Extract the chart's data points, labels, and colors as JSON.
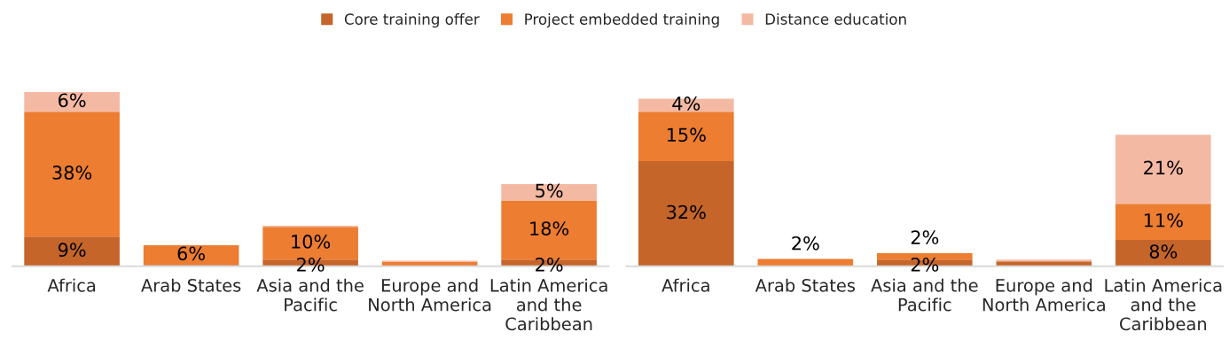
{
  "chart_data": [
    {
      "type": "bar",
      "stacked": true,
      "legend": "top",
      "grid": false,
      "categories": [
        "Africa",
        "Arab States",
        "Asia and the Pacific",
        "Europe and North America",
        "Latin America and the Caribbean"
      ],
      "series": [
        {
          "name": "Core training offer",
          "color": "#c5652a",
          "values": [
            9,
            0.4,
            2,
            0.1,
            2
          ],
          "value_labels": [
            "9%",
            null,
            "2%",
            null,
            "2%"
          ]
        },
        {
          "name": "Project embedded training",
          "color": "#ed7d31",
          "values": [
            38,
            6,
            10,
            1.2,
            18
          ],
          "value_labels": [
            "38%",
            "6%",
            "10%",
            null,
            "18%"
          ]
        },
        {
          "name": "Distance education",
          "color": "#f4b9a2",
          "values": [
            6,
            null,
            0.3,
            0.4,
            5
          ],
          "value_labels": [
            "6%",
            null,
            null,
            null,
            "5%"
          ]
        }
      ]
    },
    {
      "type": "bar",
      "stacked": true,
      "grid": false,
      "categories": [
        "Africa",
        "Arab States",
        "Asia and the Pacific",
        "Europe and North America",
        "Latin America and the Caribbean"
      ],
      "series": [
        {
          "color": "#c5652a",
          "values": [
            32,
            0.2,
            2,
            1.5,
            8
          ],
          "value_labels": [
            "32%",
            null,
            "2%",
            null,
            "8%"
          ]
        },
        {
          "color": "#ed7d31",
          "values": [
            15,
            2,
            2,
            null,
            11
          ],
          "value_labels": [
            "15%",
            "2%",
            "2%",
            null,
            "11%"
          ]
        },
        {
          "color": "#f4b9a2",
          "values": [
            4,
            null,
            null,
            0.5,
            21
          ],
          "value_labels": [
            "4%",
            null,
            null,
            null,
            "21%"
          ]
        }
      ]
    }
  ]
}
